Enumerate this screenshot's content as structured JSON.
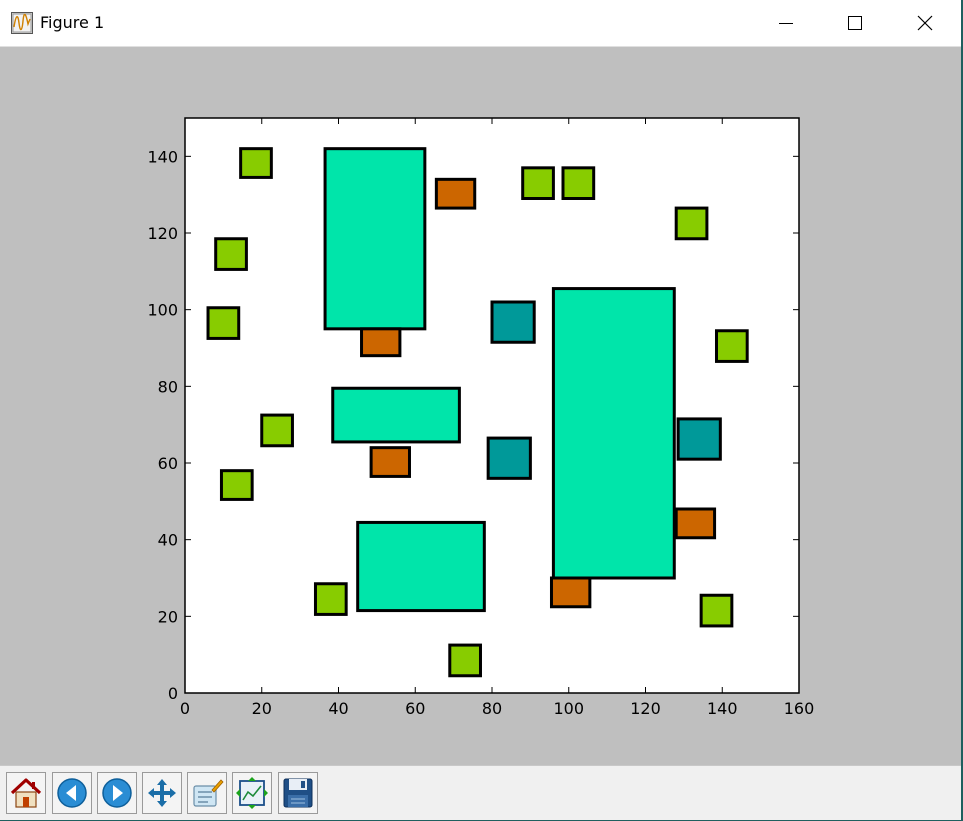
{
  "window": {
    "title": "Figure 1"
  },
  "icons": {
    "app": "figure-app-icon",
    "minimize": "minimize-icon",
    "maximize": "maximize-icon",
    "close": "close-icon"
  },
  "toolbar": {
    "tools": [
      "home-icon",
      "back-arrow-icon",
      "forward-arrow-icon",
      "pan-move-icon",
      "zoom-rect-icon",
      "subplot-config-icon",
      "save-disk-icon"
    ]
  },
  "colors": {
    "large": "#00e5aa",
    "small_green": "#88cc00",
    "small_orange": "#cc6600",
    "small_teal": "#009999",
    "figure_bg": "#bfbfbf",
    "axes_bg": "#ffffff"
  },
  "chart_data": {
    "type": "scatter",
    "xlim": [
      0,
      160
    ],
    "ylim": [
      0,
      150
    ],
    "xticks": [
      0,
      20,
      40,
      60,
      80,
      100,
      120,
      140,
      160
    ],
    "yticks": [
      0,
      20,
      40,
      60,
      80,
      100,
      120,
      140
    ],
    "grid": false,
    "rectangles": [
      {
        "kind": "large",
        "x0": 36.5,
        "y0": 95,
        "x1": 62.5,
        "y1": 142
      },
      {
        "kind": "large",
        "x0": 38.5,
        "y0": 65.5,
        "x1": 71.5,
        "y1": 79.5
      },
      {
        "kind": "large",
        "x0": 45,
        "y0": 21.5,
        "x1": 78,
        "y1": 44.5
      },
      {
        "kind": "large",
        "x0": 96,
        "y0": 30,
        "x1": 127.5,
        "y1": 105.5
      },
      {
        "kind": "small_green",
        "x0": 14.5,
        "y0": 134.5,
        "x1": 22.5,
        "y1": 142
      },
      {
        "kind": "small_green",
        "x0": 8,
        "y0": 110.5,
        "x1": 16,
        "y1": 118.5
      },
      {
        "kind": "small_green",
        "x0": 6,
        "y0": 92.5,
        "x1": 14,
        "y1": 100.5
      },
      {
        "kind": "small_green",
        "x0": 20,
        "y0": 64.5,
        "x1": 28,
        "y1": 72.5
      },
      {
        "kind": "small_green",
        "x0": 9.5,
        "y0": 50.5,
        "x1": 17.5,
        "y1": 58
      },
      {
        "kind": "small_green",
        "x0": 34,
        "y0": 20.5,
        "x1": 42,
        "y1": 28.5
      },
      {
        "kind": "small_green",
        "x0": 69,
        "y0": 4.5,
        "x1": 77,
        "y1": 12.5
      },
      {
        "kind": "small_green",
        "x0": 88,
        "y0": 129,
        "x1": 96,
        "y1": 137
      },
      {
        "kind": "small_green",
        "x0": 98.5,
        "y0": 129,
        "x1": 106.5,
        "y1": 137
      },
      {
        "kind": "small_green",
        "x0": 128,
        "y0": 118.5,
        "x1": 136,
        "y1": 126.5
      },
      {
        "kind": "small_green",
        "x0": 138.5,
        "y0": 86.5,
        "x1": 146.5,
        "y1": 94.5
      },
      {
        "kind": "small_green",
        "x0": 134.5,
        "y0": 17.5,
        "x1": 142.5,
        "y1": 25.5
      },
      {
        "kind": "small_orange",
        "x0": 65.5,
        "y0": 126.5,
        "x1": 75.5,
        "y1": 134
      },
      {
        "kind": "small_orange",
        "x0": 46,
        "y0": 88,
        "x1": 56,
        "y1": 95
      },
      {
        "kind": "small_orange",
        "x0": 48.5,
        "y0": 56.5,
        "x1": 58.5,
        "y1": 64
      },
      {
        "kind": "small_orange",
        "x0": 95.5,
        "y0": 22.5,
        "x1": 105.5,
        "y1": 30
      },
      {
        "kind": "small_orange",
        "x0": 128,
        "y0": 40.5,
        "x1": 138,
        "y1": 48
      },
      {
        "kind": "small_teal",
        "x0": 80,
        "y0": 91.5,
        "x1": 91,
        "y1": 102
      },
      {
        "kind": "small_teal",
        "x0": 79,
        "y0": 56,
        "x1": 90,
        "y1": 66.5
      },
      {
        "kind": "small_teal",
        "x0": 128.5,
        "y0": 61,
        "x1": 139.5,
        "y1": 71.5
      }
    ]
  }
}
